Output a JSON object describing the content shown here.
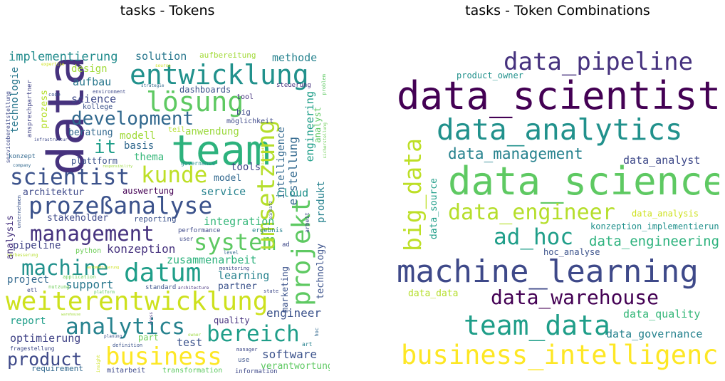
{
  "titles": {
    "tokens": "tasks - Tokens",
    "combinations": "tasks - Token Combinations"
  },
  "tokens": [
    {
      "t": "data",
      "c": "#46327e"
    },
    {
      "t": "team",
      "c": "#2db27d"
    },
    {
      "t": "entwicklung",
      "c": "#21918c"
    },
    {
      "t": "lösung",
      "c": "#5ec962"
    },
    {
      "t": "development",
      "c": "#31688e"
    },
    {
      "t": "scientist",
      "c": "#3b528b"
    },
    {
      "t": "kunde",
      "c": "#bddf26"
    },
    {
      "t": "prozeßanalyse",
      "c": "#3b528b"
    },
    {
      "t": "management",
      "c": "#46327e"
    },
    {
      "t": "system",
      "c": "#5ec962"
    },
    {
      "t": "umsetzung",
      "c": "#b5de2b"
    },
    {
      "t": "projekt",
      "c": "#5ec962"
    },
    {
      "t": "machine",
      "c": "#21918c"
    },
    {
      "t": "datum",
      "c": "#1f9e89"
    },
    {
      "t": "weiterentwicklung",
      "c": "#cde11d"
    },
    {
      "t": "analytics",
      "c": "#26828e"
    },
    {
      "t": "bereich",
      "c": "#1f9e89"
    },
    {
      "t": "business",
      "c": "#fde725"
    },
    {
      "t": "product",
      "c": "#3e4989"
    },
    {
      "t": "implementierung",
      "c": "#228c8d"
    },
    {
      "t": "design",
      "c": "#a0da39"
    },
    {
      "t": "solution",
      "c": "#2a788e"
    },
    {
      "t": "aufbereitung",
      "c": "#a2da37"
    },
    {
      "t": "methode",
      "c": "#26828e"
    },
    {
      "t": "aufbau",
      "c": "#2a788e"
    },
    {
      "t": "science",
      "c": "#3e4989"
    },
    {
      "t": "it",
      "c": "#1f9e89"
    },
    {
      "t": "dashboards",
      "c": "#3b528b"
    },
    {
      "t": "tool",
      "c": "#46327e"
    },
    {
      "t": "kollege",
      "c": "#3b528b"
    },
    {
      "t": "beratung",
      "c": "#31688e"
    },
    {
      "t": "modell",
      "c": "#a0da39"
    },
    {
      "t": "anwendung",
      "c": "#9bd93c"
    },
    {
      "t": "basis",
      "c": "#31688e"
    },
    {
      "t": "teil",
      "c": "#b5de2b"
    },
    {
      "t": "thema",
      "c": "#35b779"
    },
    {
      "t": "plattform",
      "c": "#3b528b"
    },
    {
      "t": "tools",
      "c": "#414487"
    },
    {
      "t": "intelligence",
      "c": "#31688e"
    },
    {
      "t": "erstellung",
      "c": "#31688e"
    },
    {
      "t": "engineering",
      "c": "#1f9e89"
    },
    {
      "t": "analyst",
      "c": "#5ec962"
    },
    {
      "t": "architektur",
      "c": "#3e4989"
    },
    {
      "t": "model",
      "c": "#31688e"
    },
    {
      "t": "service",
      "c": "#26828e"
    },
    {
      "t": "cloud",
      "c": "#21918c"
    },
    {
      "t": "auswertung",
      "c": "#440154"
    },
    {
      "t": "stakeholder",
      "c": "#3e4989"
    },
    {
      "t": "reporting",
      "c": "#3b528b"
    },
    {
      "t": "integration",
      "c": "#35b779"
    },
    {
      "t": "produkt",
      "c": "#26828e"
    },
    {
      "t": "analysis",
      "c": "#46327e"
    },
    {
      "t": "pipeline",
      "c": "#414487"
    },
    {
      "t": "python",
      "c": "#6ece58"
    },
    {
      "t": "konzeption",
      "c": "#46327e"
    },
    {
      "t": "zusammenarbeit",
      "c": "#2db27d"
    },
    {
      "t": "learning",
      "c": "#26828e"
    },
    {
      "t": "project",
      "c": "#31688e"
    },
    {
      "t": "support",
      "c": "#2a788e"
    },
    {
      "t": "partner",
      "c": "#3b528b"
    },
    {
      "t": "marketing",
      "c": "#3b528b"
    },
    {
      "t": "technology",
      "c": "#3b528b"
    },
    {
      "t": "engineer",
      "c": "#3b528b"
    },
    {
      "t": "report",
      "c": "#1f9e89"
    },
    {
      "t": "quality",
      "c": "#46327e"
    },
    {
      "t": "optimierung",
      "c": "#414487"
    },
    {
      "t": "part",
      "c": "#6ece58"
    },
    {
      "t": "test",
      "c": "#3b528b"
    },
    {
      "t": "software",
      "c": "#3b528b"
    },
    {
      "t": "verantwortung",
      "c": "#5ec962"
    },
    {
      "t": "requirement",
      "c": "#31688e"
    },
    {
      "t": "mitarbeit",
      "c": "#3e4989"
    },
    {
      "t": "transformation",
      "c": "#5ec962"
    },
    {
      "t": "information",
      "c": "#3e4989"
    },
    {
      "t": "technologie",
      "c": "#2a788e"
    },
    {
      "t": "prozess",
      "c": "#b5de2b"
    },
    {
      "t": "big",
      "c": "#3e4989"
    },
    {
      "t": "möglichkeit",
      "c": "#3e4989"
    },
    {
      "t": "steuerung",
      "c": "#46327e"
    },
    {
      "t": "expertise",
      "c": "#cde11d"
    },
    {
      "t": "source",
      "c": "#cde11d"
    },
    {
      "t": "strategie",
      "c": "#31688e"
    },
    {
      "t": "environment",
      "c": "#3e4989"
    },
    {
      "t": "code",
      "c": "#3b528b"
    },
    {
      "t": "ansprechpartner",
      "c": "#414487"
    },
    {
      "t": "servicebereitstellung",
      "c": "#3e4989"
    },
    {
      "t": "infrastruktur",
      "c": "#3e4989"
    },
    {
      "t": "konzept",
      "c": "#31688e"
    },
    {
      "t": "company",
      "c": "#31688e"
    },
    {
      "t": "responsibility",
      "c": "#9bd93c"
    },
    {
      "t": "governance",
      "c": "#21918c"
    },
    {
      "t": "unternehmen",
      "c": "#3b528b"
    },
    {
      "t": "verbesserung",
      "c": "#b5de2b"
    },
    {
      "t": "performance",
      "c": "#3e4989"
    },
    {
      "t": "user",
      "c": "#3e4989"
    },
    {
      "t": "ergebnis",
      "c": "#26828e"
    },
    {
      "t": "level",
      "c": "#31688e"
    },
    {
      "t": "monitoring",
      "c": "#3e4989"
    },
    {
      "t": "ad",
      "c": "#3e4989"
    },
    {
      "t": "einsatz",
      "c": "#3b528b"
    },
    {
      "t": "arbeit",
      "c": "#3e4989"
    },
    {
      "t": "problem",
      "c": "#5ec962"
    },
    {
      "t": "sicherstellung",
      "c": "#6ece58"
    },
    {
      "t": "application",
      "c": "#6ece58"
    },
    {
      "t": "nutzung",
      "c": "#6ece58"
    },
    {
      "t": "etl",
      "c": "#3e4989"
    },
    {
      "t": "platform",
      "c": "#5ec962"
    },
    {
      "t": "standard",
      "c": "#3b528b"
    },
    {
      "t": "architecture",
      "c": "#46327e"
    },
    {
      "t": "state",
      "c": "#3e4989"
    },
    {
      "t": "cross",
      "c": "#46327e"
    },
    {
      "t": "warehouse",
      "c": "#a0da39"
    },
    {
      "t": "planung",
      "c": "#3b528b"
    },
    {
      "t": "owner",
      "c": "#9bd93c"
    },
    {
      "t": "art",
      "c": "#26828e"
    },
    {
      "t": "hoc",
      "c": "#31688e"
    },
    {
      "t": "definition",
      "c": "#3b528b"
    },
    {
      "t": "manager",
      "c": "#3e4989"
    },
    {
      "t": "use",
      "c": "#3b528b"
    },
    {
      "t": "fragestellung",
      "c": "#3e4989"
    },
    {
      "t": "insight",
      "c": "#cde11d"
    },
    {
      "t": "automatisierung",
      "c": "#cde11d"
    },
    {
      "t": "implementation",
      "c": "#cde11d"
    }
  ],
  "combinations": [
    {
      "t": "data_pipeline",
      "c": "#46327e"
    },
    {
      "t": "product_owner",
      "c": "#21918c"
    },
    {
      "t": "data_scientist",
      "c": "#440154"
    },
    {
      "t": "data_analytics",
      "c": "#21918c"
    },
    {
      "t": "big_data",
      "c": "#bddf26"
    },
    {
      "t": "data_management",
      "c": "#26828e"
    },
    {
      "t": "data_analyst",
      "c": "#3e4989"
    },
    {
      "t": "data_source",
      "c": "#1f9e89"
    },
    {
      "t": "data_science",
      "c": "#5ec962"
    },
    {
      "t": "data_engineer",
      "c": "#b5de2b"
    },
    {
      "t": "data_analysis",
      "c": "#cde11d"
    },
    {
      "t": "konzeption_implementierung",
      "c": "#21918c"
    },
    {
      "t": "ad_hoc",
      "c": "#1f9e89"
    },
    {
      "t": "data_engineering",
      "c": "#2db27d"
    },
    {
      "t": "hoc_analyse",
      "c": "#3b528b"
    },
    {
      "t": "machine_learning",
      "c": "#3e4989"
    },
    {
      "t": "data_data",
      "c": "#b5de2b"
    },
    {
      "t": "data_warehouse",
      "c": "#440154"
    },
    {
      "t": "data_quality",
      "c": "#35b779"
    },
    {
      "t": "team_data",
      "c": "#1f9e89"
    },
    {
      "t": "data_governance",
      "c": "#26828e"
    },
    {
      "t": "business_intelligence",
      "c": "#fde725"
    }
  ]
}
